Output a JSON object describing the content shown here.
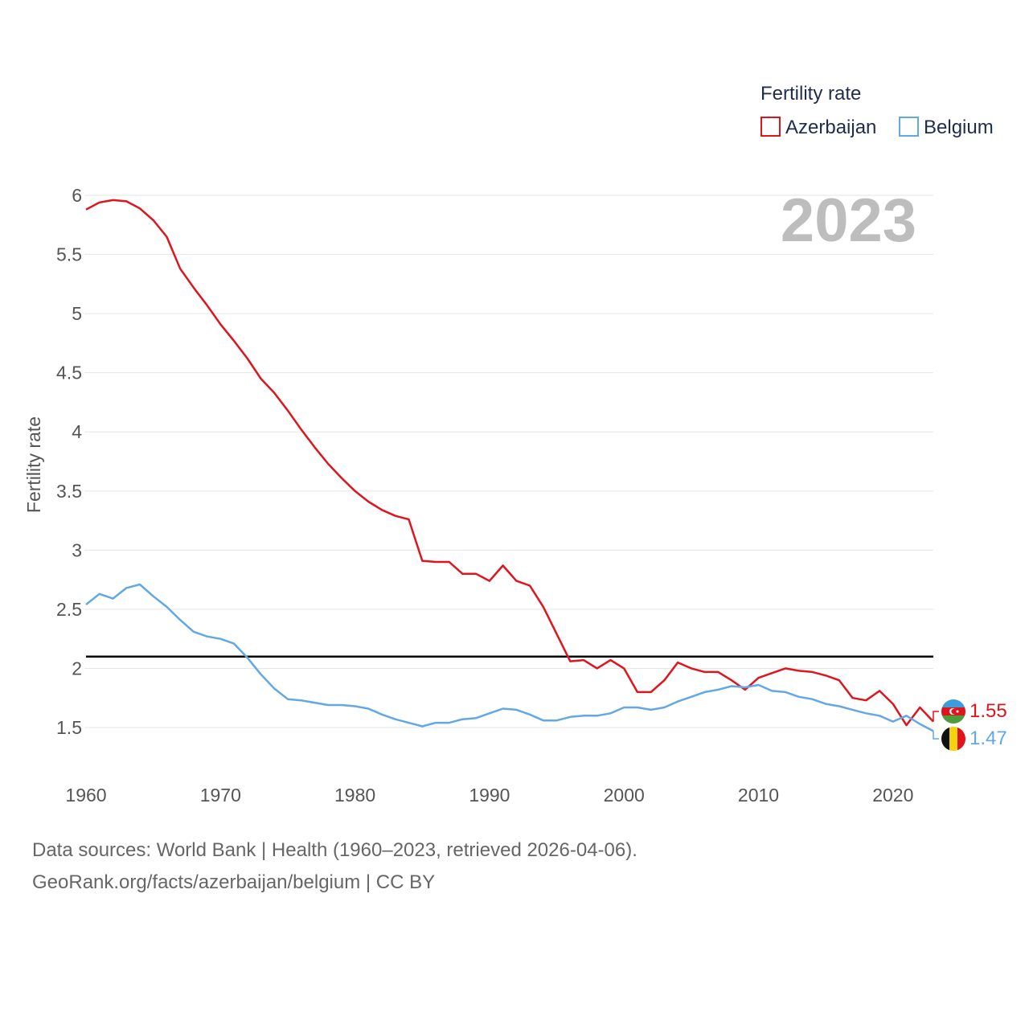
{
  "colors": {
    "azerbaijan": "#e0141c",
    "belgium": "#62a8e5",
    "reference": "#000000",
    "grid": "#e6e6e6"
  },
  "legend": {
    "title": "Fertility rate",
    "items": [
      "Azerbaijan",
      "Belgium"
    ]
  },
  "year_label": "2023",
  "footer": {
    "line1": "Data sources: World Bank | Health (1960–2023, retrieved 2026-04-06).",
    "line2": "GeoRank.org/facts/azerbaijan/belgium | CC BY"
  },
  "chart_data": {
    "type": "line",
    "title": "",
    "xlabel": "",
    "ylabel": "Fertility rate",
    "xlim": [
      1960,
      2023
    ],
    "ylim": [
      1.3,
      6.1
    ],
    "x_ticks": [
      1960,
      1970,
      1980,
      1990,
      2000,
      2010,
      2020
    ],
    "y_ticks": [
      1.5,
      2,
      2.5,
      3,
      3.5,
      4,
      4.5,
      5,
      5.5,
      6
    ],
    "y_tick_labels": [
      "1.5",
      "2",
      "2.5",
      "3",
      "3.5",
      "4",
      "4.5",
      "5",
      "5.5",
      "6"
    ],
    "reference_line": 2.1,
    "x": [
      1960,
      1961,
      1962,
      1963,
      1964,
      1965,
      1966,
      1967,
      1968,
      1969,
      1970,
      1971,
      1972,
      1973,
      1974,
      1975,
      1976,
      1977,
      1978,
      1979,
      1980,
      1981,
      1982,
      1983,
      1984,
      1985,
      1986,
      1987,
      1988,
      1989,
      1990,
      1991,
      1992,
      1993,
      1994,
      1995,
      1996,
      1997,
      1998,
      1999,
      2000,
      2001,
      2002,
      2003,
      2004,
      2005,
      2006,
      2007,
      2008,
      2009,
      2010,
      2011,
      2012,
      2013,
      2014,
      2015,
      2016,
      2017,
      2018,
      2019,
      2020,
      2021,
      2022,
      2023
    ],
    "series": [
      {
        "name": "Azerbaijan",
        "end_value_label": "1.55",
        "values": [
          5.88,
          5.94,
          5.96,
          5.95,
          5.89,
          5.79,
          5.65,
          5.38,
          5.22,
          5.07,
          4.91,
          4.77,
          4.62,
          4.45,
          4.33,
          4.18,
          4.02,
          3.87,
          3.73,
          3.61,
          3.5,
          3.41,
          3.34,
          3.29,
          3.26,
          2.91,
          2.9,
          2.9,
          2.8,
          2.8,
          2.74,
          2.87,
          2.74,
          2.7,
          2.52,
          2.29,
          2.06,
          2.07,
          2.0,
          2.07,
          2.0,
          1.8,
          1.8,
          1.9,
          2.05,
          2.0,
          1.97,
          1.97,
          1.9,
          1.82,
          1.92,
          1.96,
          2.0,
          1.98,
          1.97,
          1.94,
          1.9,
          1.75,
          1.73,
          1.81,
          1.7,
          1.52,
          1.67,
          1.55
        ]
      },
      {
        "name": "Belgium",
        "end_value_label": "1.47",
        "values": [
          2.54,
          2.63,
          2.59,
          2.68,
          2.71,
          2.61,
          2.52,
          2.41,
          2.31,
          2.27,
          2.25,
          2.21,
          2.09,
          1.95,
          1.83,
          1.74,
          1.73,
          1.71,
          1.69,
          1.69,
          1.68,
          1.66,
          1.61,
          1.57,
          1.54,
          1.51,
          1.54,
          1.54,
          1.57,
          1.58,
          1.62,
          1.66,
          1.65,
          1.61,
          1.56,
          1.56,
          1.59,
          1.6,
          1.6,
          1.62,
          1.67,
          1.67,
          1.65,
          1.67,
          1.72,
          1.76,
          1.8,
          1.82,
          1.85,
          1.84,
          1.86,
          1.81,
          1.8,
          1.76,
          1.74,
          1.7,
          1.68,
          1.65,
          1.62,
          1.6,
          1.55,
          1.6,
          1.53,
          1.47
        ]
      }
    ]
  }
}
